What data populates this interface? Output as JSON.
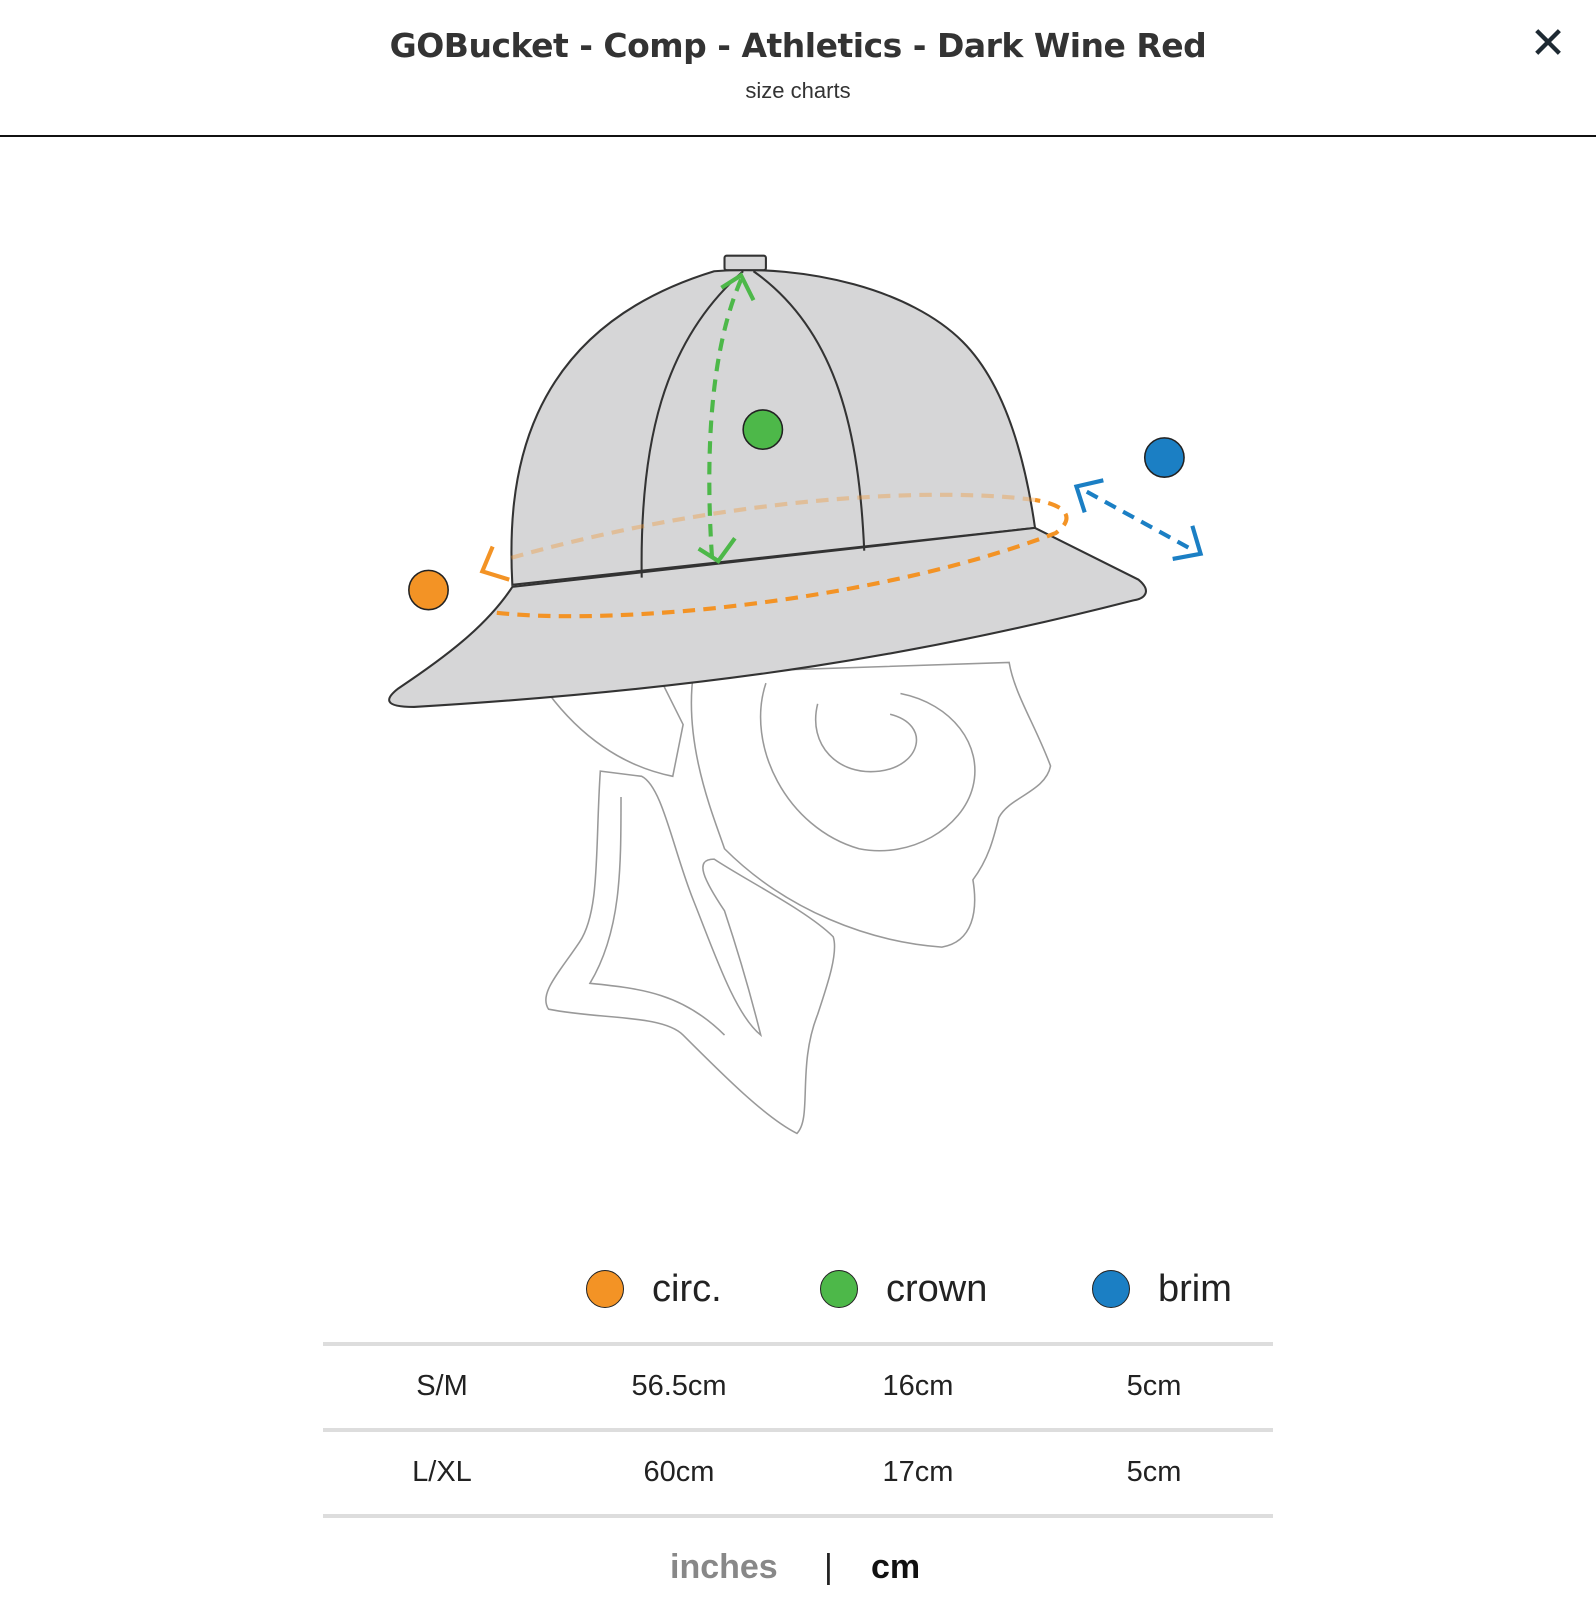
{
  "header": {
    "title": "GOBucket - Comp - Athletics - Dark Wine Red",
    "subtitle": "size charts",
    "close_icon": "close-x-icon"
  },
  "legend": [
    {
      "label": "circ.",
      "color": "#f39325"
    },
    {
      "label": "crown",
      "color": "#4db849"
    },
    {
      "label": "brim",
      "color": "#1b7fc4"
    }
  ],
  "table": {
    "rows": [
      {
        "size": "S/M",
        "circ": "56.5cm",
        "crown": "16cm",
        "brim": "5cm"
      },
      {
        "size": "L/XL",
        "circ": "60cm",
        "crown": "17cm",
        "brim": "5cm"
      }
    ]
  },
  "units": {
    "inches": "inches",
    "separator": "|",
    "cm": "cm",
    "selected": "cm"
  }
}
